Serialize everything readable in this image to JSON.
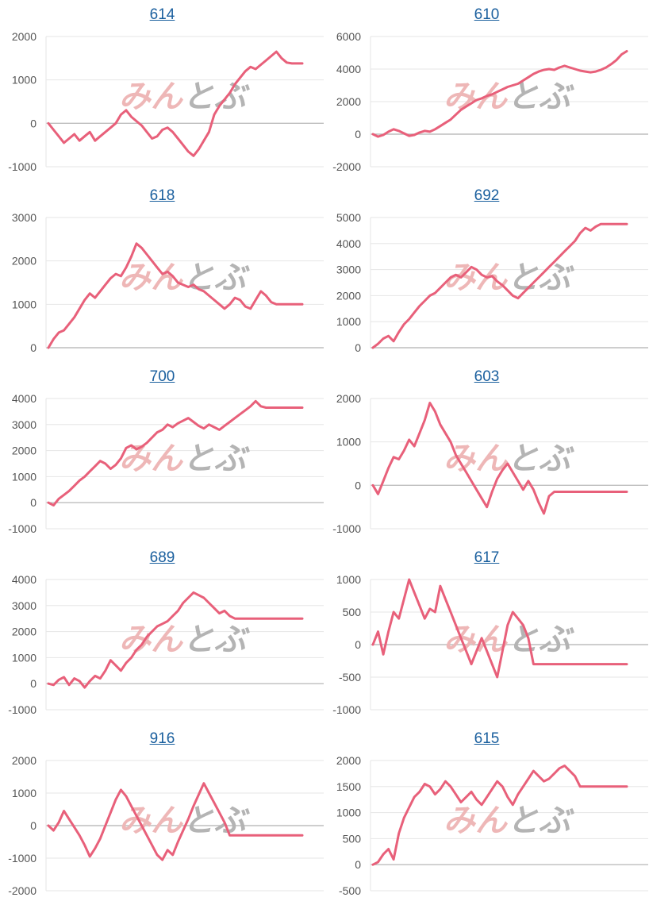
{
  "colors": {
    "line": "#e8607a",
    "grid": "#e6e6e6",
    "axis": "#bdbdbd",
    "watermark_pink": "#eeb7b7",
    "watermark_gray": "#b4b4b4"
  },
  "watermark": {
    "part1": "みん",
    "part2": "と",
    "part3": "ぶ"
  },
  "chart_data": [
    {
      "type": "line",
      "title": "614",
      "yticks": [
        -1000,
        0,
        1000,
        2000
      ],
      "ylim": [
        -1000,
        2000
      ],
      "x": [
        0,
        2,
        4,
        6,
        8,
        10,
        12,
        14,
        16,
        18,
        20,
        22,
        24,
        26,
        28,
        30,
        32,
        34,
        36,
        38,
        40,
        42,
        44,
        46,
        48,
        50,
        52,
        54,
        56,
        58,
        60,
        62,
        64,
        66,
        68,
        70,
        72,
        74,
        76,
        78,
        80,
        82,
        84,
        86,
        88,
        90,
        92,
        94,
        96,
        98
      ],
      "values": [
        0,
        -150,
        -300,
        -450,
        -350,
        -250,
        -400,
        -300,
        -200,
        -400,
        -300,
        -200,
        -100,
        0,
        200,
        300,
        150,
        50,
        -50,
        -200,
        -350,
        -300,
        -150,
        -100,
        -200,
        -350,
        -500,
        -650,
        -750,
        -600,
        -400,
        -200,
        200,
        400,
        550,
        700,
        900,
        1050,
        1200,
        1300,
        1250,
        1350,
        1450,
        1550,
        1650,
        1500,
        1400,
        1380,
        1380,
        1380
      ]
    },
    {
      "type": "line",
      "title": "610",
      "yticks": [
        -2000,
        0,
        2000,
        4000,
        6000
      ],
      "ylim": [
        -2000,
        6000
      ],
      "x": [
        0,
        2,
        4,
        6,
        8,
        10,
        12,
        14,
        16,
        18,
        20,
        22,
        24,
        26,
        28,
        30,
        32,
        34,
        36,
        38,
        40,
        42,
        44,
        46,
        48,
        50,
        52,
        54,
        56,
        58,
        60,
        62,
        64,
        66,
        68,
        70,
        72,
        74,
        76,
        78,
        80,
        82,
        84,
        86,
        88,
        90,
        92,
        94,
        96,
        98
      ],
      "values": [
        0,
        -150,
        -50,
        150,
        300,
        200,
        50,
        -100,
        -50,
        100,
        200,
        150,
        300,
        500,
        700,
        900,
        1200,
        1500,
        1700,
        1900,
        2100,
        2200,
        2350,
        2450,
        2600,
        2750,
        2900,
        3000,
        3100,
        3300,
        3500,
        3700,
        3850,
        3950,
        4000,
        3950,
        4100,
        4200,
        4100,
        4000,
        3900,
        3850,
        3800,
        3850,
        3950,
        4100,
        4300,
        4550,
        4900,
        5100
      ]
    },
    {
      "type": "line",
      "title": "618",
      "yticks": [
        0,
        1000,
        2000,
        3000
      ],
      "ylim": [
        0,
        3000
      ],
      "x": [
        0,
        2,
        4,
        6,
        8,
        10,
        12,
        14,
        16,
        18,
        20,
        22,
        24,
        26,
        28,
        30,
        32,
        34,
        36,
        38,
        40,
        42,
        44,
        46,
        48,
        50,
        52,
        54,
        56,
        58,
        60,
        62,
        64,
        66,
        68,
        70,
        72,
        74,
        76,
        78,
        80,
        82,
        84,
        86,
        88,
        90,
        92,
        94,
        96,
        98
      ],
      "values": [
        0,
        200,
        350,
        400,
        550,
        700,
        900,
        1100,
        1250,
        1150,
        1300,
        1450,
        1600,
        1700,
        1650,
        1850,
        2100,
        2400,
        2300,
        2150,
        2000,
        1850,
        1700,
        1750,
        1650,
        1500,
        1450,
        1400,
        1450,
        1350,
        1300,
        1200,
        1100,
        1000,
        900,
        1000,
        1150,
        1100,
        950,
        900,
        1100,
        1300,
        1200,
        1050,
        1000,
        1000,
        1000,
        1000,
        1000,
        1000
      ]
    },
    {
      "type": "line",
      "title": "692",
      "yticks": [
        0,
        1000,
        2000,
        3000,
        4000,
        5000
      ],
      "ylim": [
        0,
        5000
      ],
      "x": [
        0,
        2,
        4,
        6,
        8,
        10,
        12,
        14,
        16,
        18,
        20,
        22,
        24,
        26,
        28,
        30,
        32,
        34,
        36,
        38,
        40,
        42,
        44,
        46,
        48,
        50,
        52,
        54,
        56,
        58,
        60,
        62,
        64,
        66,
        68,
        70,
        72,
        74,
        76,
        78,
        80,
        82,
        84,
        86,
        88,
        90,
        92,
        94,
        96,
        98
      ],
      "values": [
        0,
        150,
        350,
        450,
        250,
        600,
        900,
        1100,
        1350,
        1600,
        1800,
        2000,
        2100,
        2300,
        2500,
        2700,
        2800,
        2700,
        2900,
        3100,
        3000,
        2800,
        2700,
        2750,
        2550,
        2400,
        2200,
        2000,
        1900,
        2100,
        2300,
        2500,
        2700,
        2900,
        3100,
        3300,
        3500,
        3700,
        3900,
        4100,
        4400,
        4600,
        4500,
        4650,
        4750,
        4750,
        4750,
        4750,
        4750,
        4750
      ]
    },
    {
      "type": "line",
      "title": "700",
      "yticks": [
        -1000,
        0,
        1000,
        2000,
        3000,
        4000
      ],
      "ylim": [
        -1000,
        4000
      ],
      "x": [
        0,
        2,
        4,
        6,
        8,
        10,
        12,
        14,
        16,
        18,
        20,
        22,
        24,
        26,
        28,
        30,
        32,
        34,
        36,
        38,
        40,
        42,
        44,
        46,
        48,
        50,
        52,
        54,
        56,
        58,
        60,
        62,
        64,
        66,
        68,
        70,
        72,
        74,
        76,
        78,
        80,
        82,
        84,
        86,
        88,
        90,
        92,
        94,
        96,
        98
      ],
      "values": [
        0,
        -100,
        150,
        300,
        450,
        650,
        850,
        1000,
        1200,
        1400,
        1600,
        1500,
        1300,
        1450,
        1700,
        2100,
        2200,
        2050,
        2150,
        2300,
        2500,
        2700,
        2800,
        3000,
        2900,
        3050,
        3150,
        3250,
        3100,
        2950,
        2850,
        3000,
        2900,
        2800,
        2950,
        3100,
        3250,
        3400,
        3550,
        3700,
        3900,
        3700,
        3650,
        3650,
        3650,
        3650,
        3650,
        3650,
        3650,
        3650
      ]
    },
    {
      "type": "line",
      "title": "603",
      "yticks": [
        -1000,
        0,
        1000,
        2000
      ],
      "ylim": [
        -1000,
        2000
      ],
      "x": [
        0,
        2,
        4,
        6,
        8,
        10,
        12,
        14,
        16,
        18,
        20,
        22,
        24,
        26,
        28,
        30,
        32,
        34,
        36,
        38,
        40,
        42,
        44,
        46,
        48,
        50,
        52,
        54,
        56,
        58,
        60,
        62,
        64,
        66,
        68,
        70,
        72,
        74,
        76,
        78,
        80,
        82,
        84,
        86,
        88,
        90,
        92,
        94,
        96,
        98
      ],
      "values": [
        0,
        -200,
        100,
        400,
        650,
        600,
        800,
        1050,
        900,
        1200,
        1500,
        1900,
        1700,
        1400,
        1200,
        1000,
        700,
        500,
        300,
        100,
        -100,
        -300,
        -500,
        -150,
        150,
        350,
        500,
        300,
        100,
        -100,
        100,
        -100,
        -400,
        -650,
        -250,
        -150,
        -150,
        -150,
        -150,
        -150,
        -150,
        -150,
        -150,
        -150,
        -150,
        -150,
        -150,
        -150,
        -150,
        -150
      ]
    },
    {
      "type": "line",
      "title": "689",
      "yticks": [
        -1000,
        0,
        1000,
        2000,
        3000,
        4000
      ],
      "ylim": [
        -1000,
        4000
      ],
      "x": [
        0,
        2,
        4,
        6,
        8,
        10,
        12,
        14,
        16,
        18,
        20,
        22,
        24,
        26,
        28,
        30,
        32,
        34,
        36,
        38,
        40,
        42,
        44,
        46,
        48,
        50,
        52,
        54,
        56,
        58,
        60,
        62,
        64,
        66,
        68,
        70,
        72,
        74,
        76,
        78,
        80,
        82,
        84,
        86,
        88,
        90,
        92,
        94,
        96,
        98
      ],
      "values": [
        0,
        -50,
        150,
        250,
        -50,
        200,
        100,
        -150,
        100,
        300,
        200,
        500,
        900,
        700,
        500,
        800,
        1000,
        1300,
        1500,
        1800,
        2000,
        2200,
        2300,
        2400,
        2600,
        2800,
        3100,
        3300,
        3500,
        3400,
        3300,
        3100,
        2900,
        2700,
        2800,
        2600,
        2500,
        2500,
        2500,
        2500,
        2500,
        2500,
        2500,
        2500,
        2500,
        2500,
        2500,
        2500,
        2500,
        2500
      ]
    },
    {
      "type": "line",
      "title": "617",
      "yticks": [
        -1000,
        -500,
        0,
        500,
        1000
      ],
      "ylim": [
        -1000,
        1000
      ],
      "x": [
        0,
        2,
        4,
        6,
        8,
        10,
        12,
        14,
        16,
        18,
        20,
        22,
        24,
        26,
        28,
        30,
        32,
        34,
        36,
        38,
        40,
        42,
        44,
        46,
        48,
        50,
        52,
        54,
        56,
        58,
        60,
        62,
        64,
        66,
        68,
        70,
        72,
        74,
        76,
        78,
        80,
        82,
        84,
        86,
        88,
        90,
        92,
        94,
        96,
        98
      ],
      "values": [
        0,
        200,
        -150,
        200,
        500,
        400,
        700,
        1000,
        800,
        600,
        400,
        550,
        500,
        900,
        700,
        500,
        300,
        100,
        -100,
        -300,
        -100,
        100,
        -100,
        -300,
        -500,
        -100,
        300,
        500,
        400,
        300,
        100,
        -300,
        -300,
        -300,
        -300,
        -300,
        -300,
        -300,
        -300,
        -300,
        -300,
        -300,
        -300,
        -300,
        -300,
        -300,
        -300,
        -300,
        -300,
        -300
      ]
    },
    {
      "type": "line",
      "title": "916",
      "yticks": [
        -2000,
        -1000,
        0,
        1000,
        2000
      ],
      "ylim": [
        -2000,
        2000
      ],
      "x": [
        0,
        2,
        4,
        6,
        8,
        10,
        12,
        14,
        16,
        18,
        20,
        22,
        24,
        26,
        28,
        30,
        32,
        34,
        36,
        38,
        40,
        42,
        44,
        46,
        48,
        50,
        52,
        54,
        56,
        58,
        60,
        62,
        64,
        66,
        68,
        70,
        72,
        74,
        76,
        78,
        80,
        82,
        84,
        86,
        88,
        90,
        92,
        94,
        96,
        98
      ],
      "values": [
        0,
        -150,
        100,
        450,
        200,
        -50,
        -300,
        -600,
        -950,
        -700,
        -400,
        0,
        400,
        800,
        1100,
        900,
        600,
        300,
        0,
        -300,
        -600,
        -900,
        -1050,
        -750,
        -900,
        -500,
        -150,
        200,
        600,
        950,
        1300,
        1000,
        700,
        400,
        100,
        -300,
        -300,
        -300,
        -300,
        -300,
        -300,
        -300,
        -300,
        -300,
        -300,
        -300,
        -300,
        -300,
        -300,
        -300
      ]
    },
    {
      "type": "line",
      "title": "615",
      "yticks": [
        -500,
        0,
        500,
        1000,
        1500,
        2000
      ],
      "ylim": [
        -500,
        2000
      ],
      "x": [
        0,
        2,
        4,
        6,
        8,
        10,
        12,
        14,
        16,
        18,
        20,
        22,
        24,
        26,
        28,
        30,
        32,
        34,
        36,
        38,
        40,
        42,
        44,
        46,
        48,
        50,
        52,
        54,
        56,
        58,
        60,
        62,
        64,
        66,
        68,
        70,
        72,
        74,
        76,
        78,
        80,
        82,
        84,
        86,
        88,
        90,
        92,
        94,
        96,
        98
      ],
      "values": [
        0,
        50,
        200,
        300,
        100,
        600,
        900,
        1100,
        1300,
        1400,
        1550,
        1500,
        1350,
        1450,
        1600,
        1500,
        1350,
        1200,
        1300,
        1400,
        1250,
        1150,
        1300,
        1450,
        1600,
        1500,
        1300,
        1150,
        1350,
        1500,
        1650,
        1800,
        1700,
        1600,
        1650,
        1750,
        1850,
        1900,
        1800,
        1700,
        1500,
        1500,
        1500,
        1500,
        1500,
        1500,
        1500,
        1500,
        1500,
        1500
      ]
    }
  ]
}
